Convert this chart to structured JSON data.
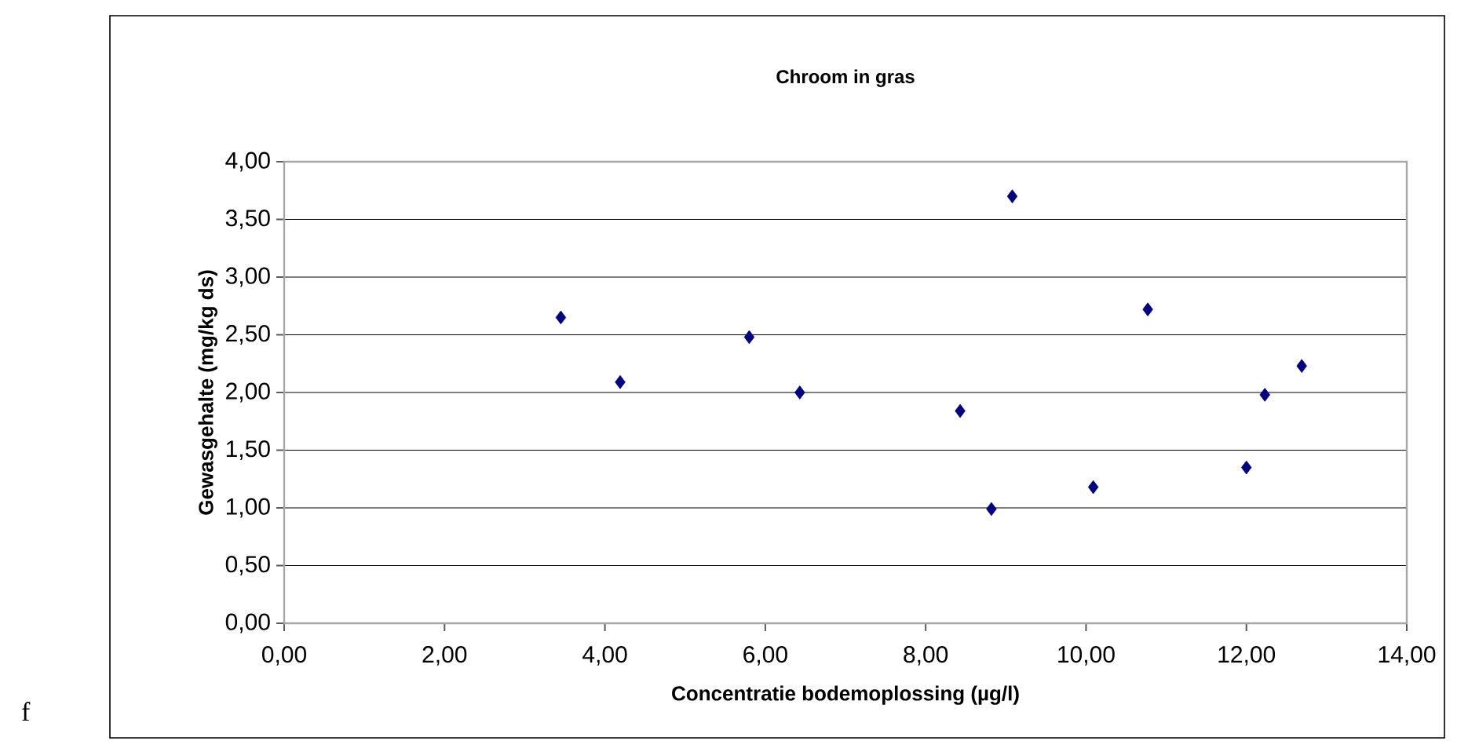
{
  "chart_data": {
    "type": "scatter",
    "title": "Chroom in gras",
    "xlabel": "Concentratie bodemoplossing (µg/l)",
    "ylabel": "Gewasgehalte (mg/kg ds)",
    "annotations": [
      "f"
    ],
    "series": [
      {
        "color": "#000080",
        "x": [
          3.45,
          4.19,
          5.8,
          6.43,
          8.43,
          8.82,
          9.08,
          10.09,
          10.77,
          12.0,
          12.23,
          12.69
        ],
        "values": [
          2.65,
          2.09,
          2.48,
          2.0,
          1.84,
          0.99,
          3.7,
          1.18,
          2.72,
          1.35,
          1.98,
          2.23
        ]
      }
    ],
    "xlim": [
      0,
      14
    ],
    "ylim": [
      0,
      4
    ],
    "xticks": [
      {
        "value": 0,
        "label": "0,00"
      },
      {
        "value": 2,
        "label": "2,00"
      },
      {
        "value": 4,
        "label": "4,00"
      },
      {
        "value": 6,
        "label": "6,00"
      },
      {
        "value": 8,
        "label": "8,00"
      },
      {
        "value": 10,
        "label": "10,00"
      },
      {
        "value": 12,
        "label": "12,00"
      },
      {
        "value": 14,
        "label": "14,00"
      }
    ],
    "yticks": [
      {
        "value": 0,
        "label": "0,00"
      },
      {
        "value": 0.5,
        "label": "0,50"
      },
      {
        "value": 1,
        "label": "1,00"
      },
      {
        "value": 1.5,
        "label": "1,50"
      },
      {
        "value": 2,
        "label": "2,00"
      },
      {
        "value": 2.5,
        "label": "2,50"
      },
      {
        "value": 3,
        "label": "3,00"
      },
      {
        "value": 3.5,
        "label": "3,50"
      },
      {
        "value": 4,
        "label": "4,00"
      }
    ],
    "grid": "y",
    "marker": "diamond"
  }
}
